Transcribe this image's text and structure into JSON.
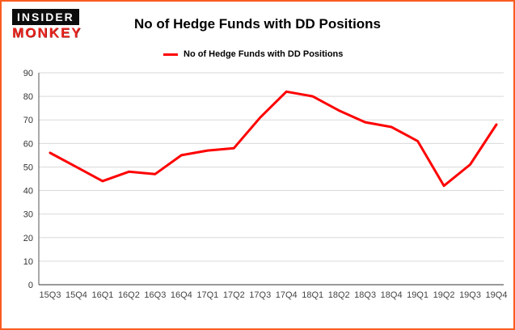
{
  "logo": {
    "top": "INSIDER",
    "bottom": "MONKEY"
  },
  "header": {
    "title": "No of Hedge Funds with DD Positions"
  },
  "legend": {
    "label": "No of Hedge Funds with DD Positions"
  },
  "colors": {
    "frame_orange": "#f85c1f",
    "line_red": "#fe0000",
    "logo_red": "#e8261f",
    "gridline_gray": "#d9d9d9",
    "axis_gray": "#555555"
  },
  "chart_data": {
    "type": "line",
    "title": "No of Hedge Funds with DD Positions",
    "categories": [
      "15Q3",
      "15Q4",
      "16Q1",
      "16Q2",
      "16Q3",
      "16Q4",
      "17Q1",
      "17Q2",
      "17Q3",
      "17Q4",
      "18Q1",
      "18Q2",
      "18Q3",
      "18Q4",
      "19Q1",
      "19Q2",
      "19Q3",
      "19Q4"
    ],
    "values": [
      56,
      50,
      44,
      48,
      47,
      55,
      57,
      58,
      71,
      82,
      80,
      74,
      69,
      67,
      61,
      42,
      51,
      68
    ],
    "xlabel": "",
    "ylabel": "",
    "ylim": [
      0,
      90
    ],
    "ytick_interval": 10,
    "grid": true,
    "legend_entries": [
      "No of Hedge Funds with DD Positions"
    ],
    "legend_position": "top-left",
    "line_color": "#fe0000"
  }
}
